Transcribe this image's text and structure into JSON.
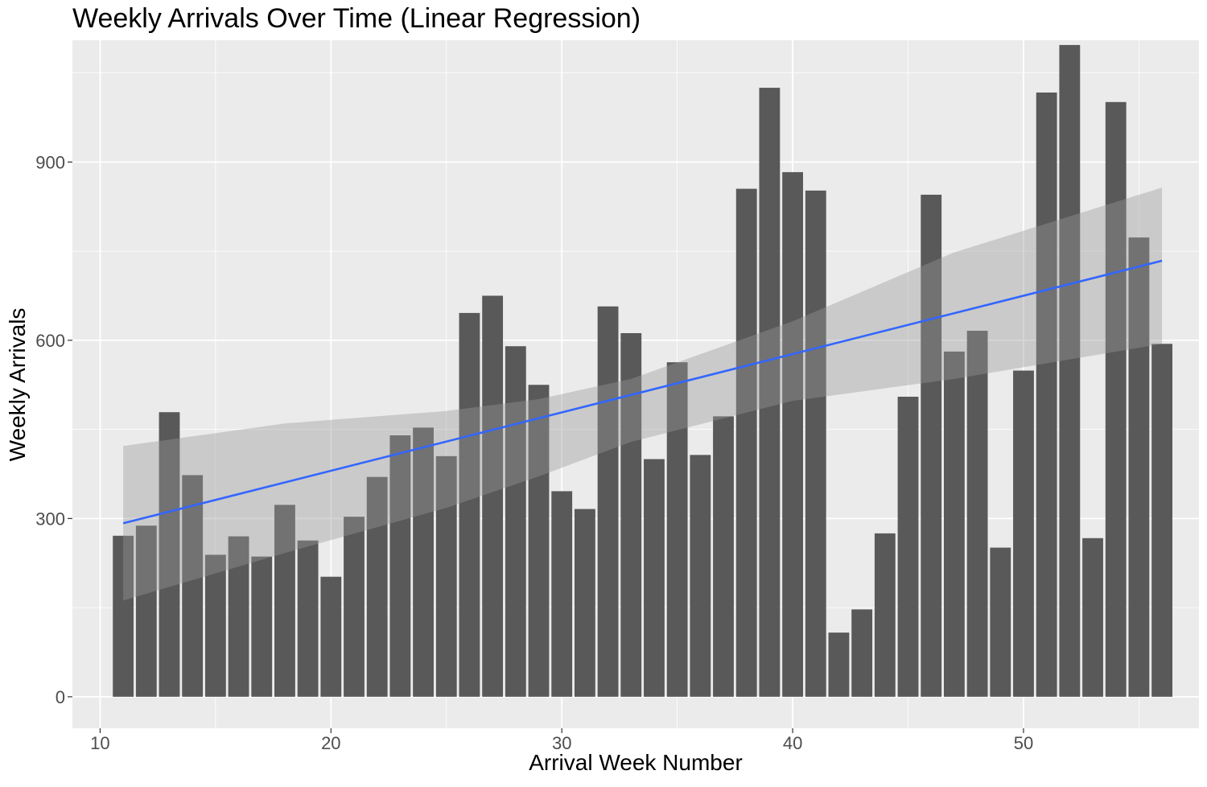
{
  "chart_data": {
    "type": "bar",
    "title": "Weekly Arrivals Over Time (Linear Regression)",
    "xlabel": "Arrival Week Number",
    "ylabel": "Weekly Arrivals",
    "x": [
      11,
      12,
      13,
      14,
      15,
      16,
      17,
      18,
      19,
      20,
      21,
      22,
      23,
      24,
      25,
      26,
      27,
      28,
      29,
      30,
      31,
      32,
      33,
      34,
      35,
      36,
      37,
      38,
      39,
      40,
      41,
      42,
      43,
      44,
      45,
      46,
      47,
      48,
      49,
      50,
      51,
      52,
      53,
      54,
      55,
      56
    ],
    "values": [
      271,
      288,
      479,
      373,
      239,
      270,
      236,
      323,
      263,
      202,
      303,
      370,
      440,
      453,
      405,
      646,
      675,
      590,
      525,
      346,
      316,
      657,
      612,
      400,
      563,
      407,
      472,
      855,
      1025,
      883,
      852,
      108,
      147,
      275,
      505,
      845,
      581,
      616,
      251,
      549,
      1017,
      1097,
      267,
      1001,
      773,
      594
    ],
    "xlim": [
      8.8,
      57.6
    ],
    "ylim": [
      -53,
      1105
    ],
    "x_ticks": [
      "10",
      "20",
      "30",
      "40",
      "50"
    ],
    "y_ticks": [
      "0",
      "300",
      "600",
      "900"
    ],
    "regression": {
      "slope": 9.82,
      "intercept": 184,
      "ci_x": [
        11,
        18,
        25,
        29,
        33,
        40,
        47,
        56
      ],
      "ci_lower": [
        162,
        242,
        318,
        371,
        429,
        498,
        535,
        594
      ],
      "ci_upper": [
        422,
        460,
        481,
        501,
        535,
        632,
        748,
        857
      ]
    },
    "grid": true,
    "colors": {
      "panel": "#EBEBEB",
      "grid_major": "#FFFFFF",
      "bar": "#595959",
      "line": "#3366FF",
      "ribbon": "#999999",
      "axis_text": "#4D4D4D"
    }
  }
}
